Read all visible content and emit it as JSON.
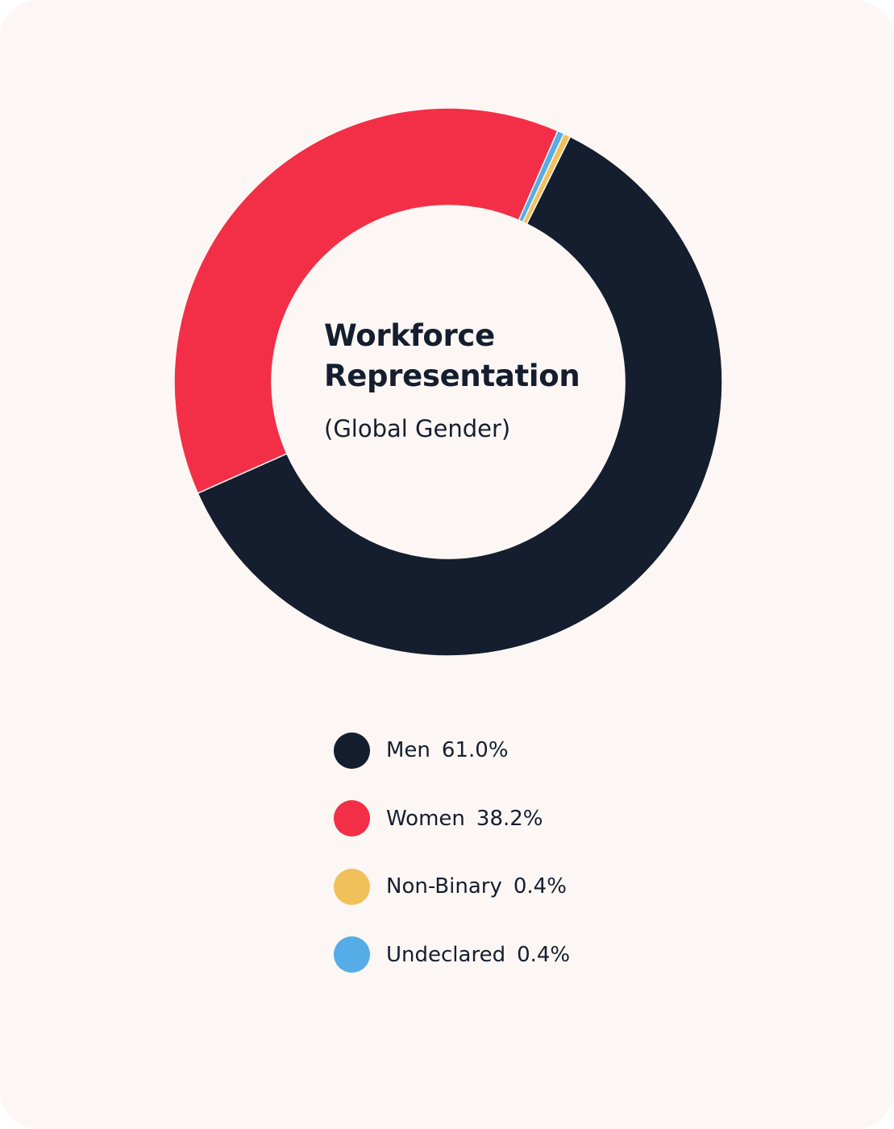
{
  "chart_data": {
    "type": "pie",
    "donut": true,
    "title": "Workforce Representation",
    "title_lines": [
      "Workforce",
      "Representation"
    ],
    "subtitle": "(Global Gender)",
    "legend_position": "bottom",
    "series": [
      {
        "name": "Men",
        "value": 61.0,
        "label": "61.0%",
        "color": "#151e2e"
      },
      {
        "name": "Women",
        "value": 38.2,
        "label": "38.2%",
        "color": "#f22f46"
      },
      {
        "name": "Non-Binary",
        "value": 0.4,
        "label": "0.4%",
        "color": "#f0c05a"
      },
      {
        "name": "Undeclared",
        "value": 0.4,
        "label": "0.4%",
        "color": "#55ace6"
      }
    ],
    "slice_order_clockwise_from_top": [
      "Non-Binary",
      "Men",
      "Women",
      "Undeclared"
    ]
  },
  "colors": {
    "card_background": "#fcf7f4",
    "text": "#151e2e"
  }
}
